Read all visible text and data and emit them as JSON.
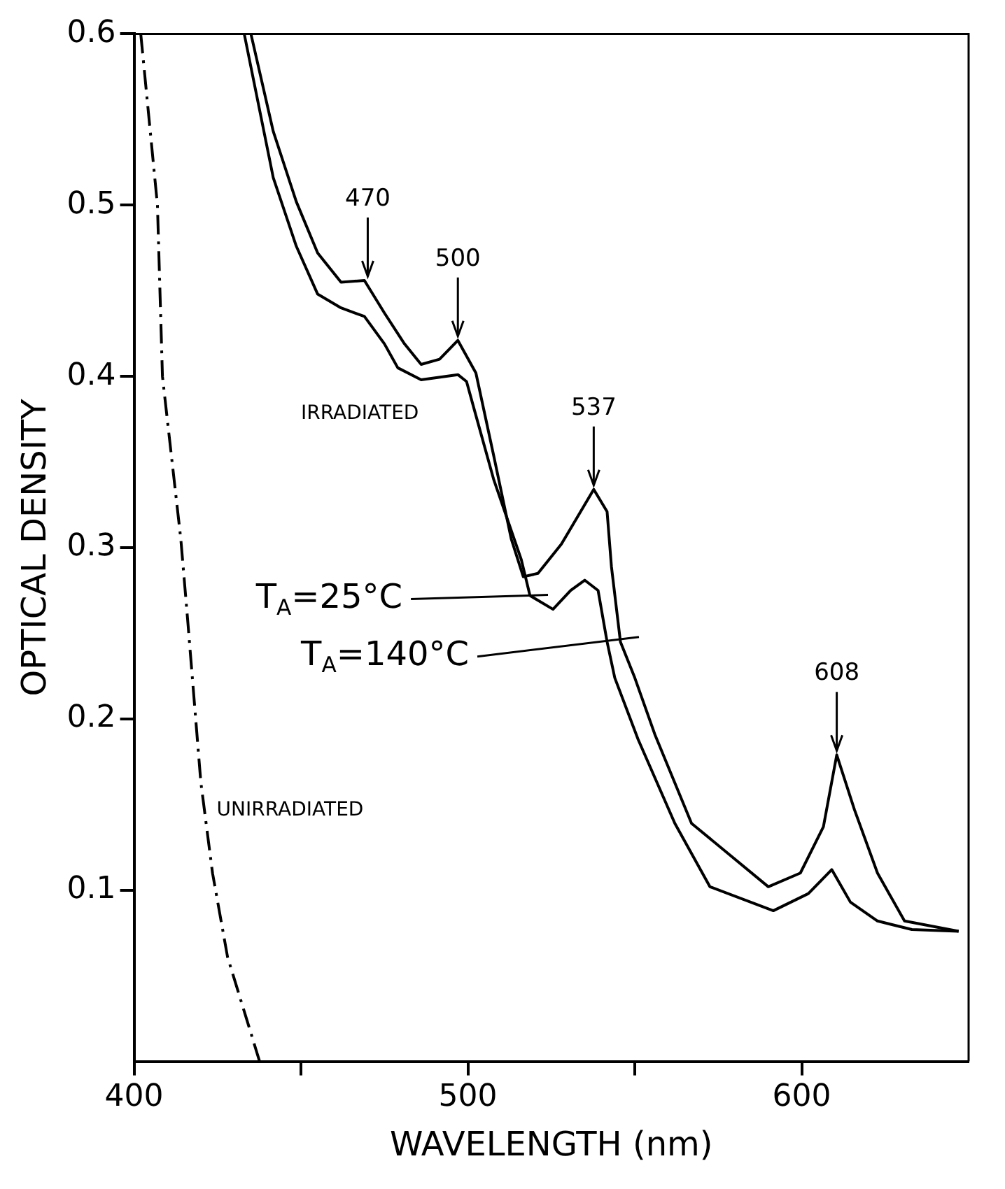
{
  "chart_data": {
    "type": "line",
    "xlabel": "WAVELENGTH (nm)",
    "ylabel": "OPTICAL DENSITY",
    "xlim": [
      400,
      650
    ],
    "ylim": [
      0,
      0.6
    ],
    "xticks": [
      400,
      {
        "value": 450,
        "label": null
      },
      500,
      {
        "value": 550,
        "label": null
      },
      600
    ],
    "yticks": [
      0.1,
      0.2,
      0.3,
      0.4,
      0.5,
      0.6
    ],
    "grid": false,
    "legend": false,
    "marker": "none",
    "series": [
      {
        "color": "#000000",
        "x": [
          435,
          441.7,
          448.6,
          455,
          462,
          469,
          475,
          481,
          486,
          491.5,
          497,
          502.4,
          507.7,
          513,
          516.6,
          521,
          528,
          537.7,
          541.7,
          543,
          545.7,
          550,
          556,
          567,
          590,
          599.6,
          606.5,
          610.5,
          615.8,
          622.7,
          630.8,
          647
        ],
        "values": [
          0.6,
          0.543,
          0.502,
          0.472,
          0.455,
          0.456,
          0.437,
          0.419,
          0.407,
          0.41,
          0.421,
          0.402,
          0.354,
          0.305,
          0.283,
          0.285,
          0.302,
          0.334,
          0.321,
          0.289,
          0.245,
          0.224,
          0.191,
          0.139,
          0.102,
          0.11,
          0.137,
          0.179,
          0.147,
          0.11,
          0.082,
          0.076
        ]
      },
      {
        "color": "#000000",
        "x": [
          433,
          441.7,
          448.6,
          455,
          462,
          469,
          475,
          479,
          486,
          497,
          499.6,
          502,
          507.7,
          516,
          518.6,
          525.5,
          530.8,
          535,
          539,
          541.7,
          544,
          551,
          562,
          572.5,
          591.5,
          602,
          609,
          614.6,
          622.7,
          633,
          647
        ],
        "values": [
          0.6,
          0.516,
          0.476,
          0.448,
          0.44,
          0.435,
          0.419,
          0.405,
          0.398,
          0.401,
          0.397,
          0.38,
          0.34,
          0.293,
          0.272,
          0.264,
          0.275,
          0.281,
          0.275,
          0.245,
          0.224,
          0.188,
          0.139,
          0.102,
          0.088,
          0.098,
          0.112,
          0.093,
          0.082,
          0.077,
          0.076
        ]
      },
      {
        "color": "#000000",
        "line_style": "dashed",
        "x": [
          402,
          407,
          408.5,
          414,
          416,
          420,
          423.5,
          428,
          437.6
        ],
        "values": [
          0.6,
          0.5,
          0.4,
          0.305,
          0.259,
          0.163,
          0.11,
          0.061,
          0.0
        ]
      }
    ],
    "annotations": [
      {
        "text": "470",
        "x": 470,
        "y": 0.456
      },
      {
        "text": "500",
        "x": 497,
        "y": 0.421
      },
      {
        "text": "537",
        "x": 537.7,
        "y": 0.334
      },
      {
        "text": "608",
        "x": 610.5,
        "y": 0.179
      },
      "IRRADIATED",
      "T$_{A}$=25°C",
      "T$_{A}$=140°C",
      "UNIRRADIATED"
    ]
  }
}
